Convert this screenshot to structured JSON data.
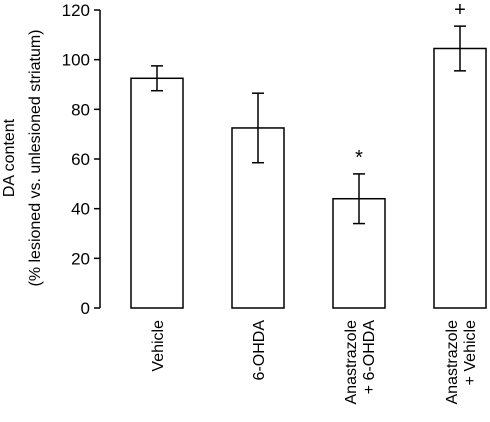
{
  "chart_data": {
    "type": "bar",
    "title": "",
    "ylabel": [
      "DA content",
      "(% lesioned vs. unlesioned striatum)"
    ],
    "xlabel": "",
    "ylim": [
      0,
      120
    ],
    "yticks": [
      0,
      20,
      40,
      60,
      80,
      100,
      120
    ],
    "ytick_labels": [
      "0",
      "20",
      "40",
      "60",
      "80",
      "100",
      "120"
    ],
    "categories": [
      [
        "Vehicle"
      ],
      [
        "6-OHDA"
      ],
      [
        "Anastrazole",
        "+ 6-OHDA"
      ],
      [
        "Anastrazole",
        "+ Vehicle"
      ]
    ],
    "values": [
      92.5,
      72.5,
      44,
      104.5
    ],
    "errors": [
      5,
      14,
      10,
      9
    ],
    "annotations": [
      "",
      "",
      "*",
      "+"
    ],
    "bar_fill": "#ffffff",
    "bar_stroke": "#000000",
    "grid": false,
    "legend": "none"
  }
}
